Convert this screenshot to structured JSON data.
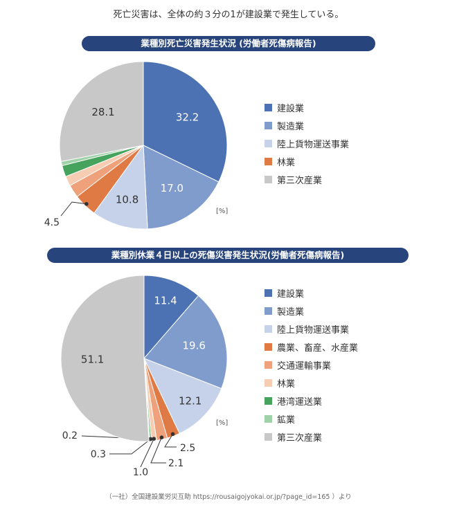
{
  "header": "死亡災害は、全体の約３分の1が建設業で発生している。",
  "footer": "（一社）全国建設業労災互助 https://rousaigojyokai.or.jp/?page_id=165 ）より",
  "chart_data": [
    {
      "type": "pie",
      "title": "業種別死亡災害発生状況 (労働者死傷病報告)",
      "unit": "[%]",
      "slices": [
        {
          "name": "建設業",
          "value": 32.2,
          "color": "#4c72b3",
          "label": "32.2",
          "label_color": "#ffffff"
        },
        {
          "name": "製造業",
          "value": 17.0,
          "color": "#7f9ccd",
          "label": "17.0",
          "label_color": "#ffffff"
        },
        {
          "name": "陸上貨物運送事業",
          "value": 10.8,
          "color": "#c5d2ea",
          "label": "10.8",
          "label_color": "#333333"
        },
        {
          "name": "林業",
          "value": 4.5,
          "color": "#e07a44",
          "label": "4.5",
          "label_color": "#333333"
        },
        {
          "name": "",
          "value": 2.5,
          "color": "#eea17a",
          "label": "",
          "label_color": "#333333"
        },
        {
          "name": "",
          "value": 1.9,
          "color": "#f6cdb3",
          "label": "",
          "label_color": "#333333"
        },
        {
          "name": "",
          "value": 2.2,
          "color": "#46a35d",
          "label": "",
          "label_color": "#333333"
        },
        {
          "name": "",
          "value": 0.8,
          "color": "#9fd2a8",
          "label": "",
          "label_color": "#333333"
        },
        {
          "name": "第三次産業",
          "value": 28.1,
          "color": "#c8c8c8",
          "label": "28.1",
          "label_color": "#333333"
        }
      ],
      "legend": [
        {
          "name": "建設業",
          "color": "#4c72b3"
        },
        {
          "name": "製造業",
          "color": "#7f9ccd"
        },
        {
          "name": "陸上貨物運送事業",
          "color": "#c5d2ea"
        },
        {
          "name": "林業",
          "color": "#e07a44"
        },
        {
          "name": "第三次産業",
          "color": "#c8c8c8"
        }
      ]
    },
    {
      "type": "pie",
      "title": "業種別休業４日以上の死傷災害発生状況(労働者死傷病報告)",
      "unit": "[%]",
      "slices": [
        {
          "name": "建設業",
          "value": 11.4,
          "color": "#4c72b3",
          "label": "11.4",
          "label_color": "#ffffff"
        },
        {
          "name": "製造業",
          "value": 19.6,
          "color": "#7f9ccd",
          "label": "19.6",
          "label_color": "#ffffff"
        },
        {
          "name": "陸上貨物運送事業",
          "value": 12.1,
          "color": "#c5d2ea",
          "label": "12.1",
          "label_color": "#333333"
        },
        {
          "name": "農業、畜産、水産業",
          "value": 2.5,
          "color": "#e07a44",
          "label": "2.5",
          "label_color": "#333333"
        },
        {
          "name": "交通運輸事業",
          "value": 2.1,
          "color": "#eea17a",
          "label": "2.1",
          "label_color": "#333333"
        },
        {
          "name": "林業",
          "value": 1.0,
          "color": "#f6cdb3",
          "label": "1.0",
          "label_color": "#333333"
        },
        {
          "name": "港湾運送業",
          "value": 0.3,
          "color": "#46a35d",
          "label": "0.3",
          "label_color": "#333333"
        },
        {
          "name": "鉱業",
          "value": 0.2,
          "color": "#9fd2a8",
          "label": "0.2",
          "label_color": "#333333"
        },
        {
          "name": "第三次産業",
          "value": 51.1,
          "color": "#c8c8c8",
          "label": "51.1",
          "label_color": "#333333"
        }
      ],
      "legend": [
        {
          "name": "建設業",
          "color": "#4c72b3"
        },
        {
          "name": "製造業",
          "color": "#7f9ccd"
        },
        {
          "name": "陸上貨物運送事業",
          "color": "#c5d2ea"
        },
        {
          "name": "農業、畜産、水産業",
          "color": "#e07a44"
        },
        {
          "name": "交通運輸事業",
          "color": "#eea17a"
        },
        {
          "name": "林業",
          "color": "#f6cdb3"
        },
        {
          "name": "港湾運送業",
          "color": "#46a35d"
        },
        {
          "name": "鉱業",
          "color": "#9fd2a8"
        },
        {
          "name": "第三次産業",
          "color": "#c8c8c8"
        }
      ]
    }
  ]
}
